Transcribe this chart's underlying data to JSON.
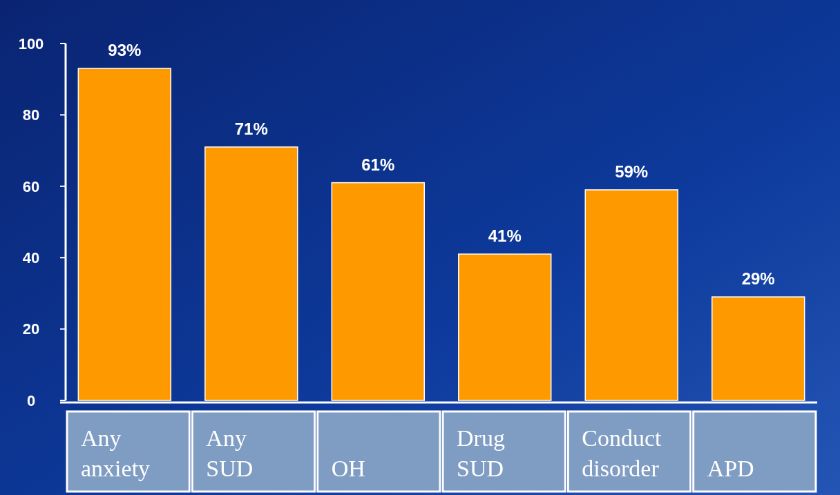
{
  "chart_data": {
    "type": "bar",
    "categories": [
      "Any anxiety",
      "Any SUD",
      "OH",
      "Drug SUD",
      "Conduct disorder",
      "APD"
    ],
    "values": [
      93,
      71,
      61,
      41,
      59,
      29
    ],
    "value_labels": [
      "93%",
      "71%",
      "61%",
      "41%",
      "59%",
      "29%"
    ],
    "color": "#ff9900",
    "ylim": [
      0,
      100
    ],
    "yticks": [
      0,
      20,
      40,
      60,
      80,
      100
    ],
    "grid": false
  }
}
